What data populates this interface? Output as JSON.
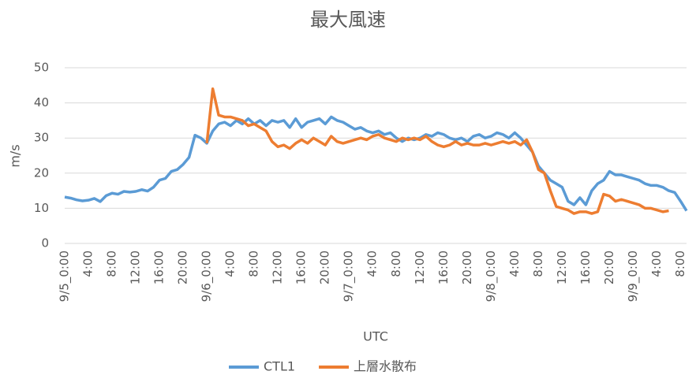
{
  "chart_data": {
    "type": "line",
    "title": "最大風速",
    "x_label": "UTC",
    "y_label": "m/s",
    "categories": [
      "9/5_0:00",
      null,
      null,
      null,
      "4:00",
      null,
      null,
      null,
      "8:00",
      null,
      null,
      null,
      "12:00",
      null,
      null,
      null,
      "16:00",
      null,
      null,
      null,
      "20:00",
      null,
      null,
      null,
      "9/6_0:00",
      null,
      null,
      null,
      "4:00",
      null,
      null,
      null,
      "8:00",
      null,
      null,
      null,
      "12:00",
      null,
      null,
      null,
      "16:00",
      null,
      null,
      null,
      "20:00",
      null,
      null,
      null,
      "9/7_0:00",
      null,
      null,
      null,
      "4:00",
      null,
      null,
      null,
      "8:00",
      null,
      null,
      null,
      "12:00",
      null,
      null,
      null,
      "16:00",
      null,
      null,
      null,
      "20:00",
      null,
      null,
      null,
      "9/8_0:00",
      null,
      null,
      null,
      "4:00",
      null,
      null,
      null,
      "8:00",
      null,
      null,
      null,
      "12:00",
      null,
      null,
      null,
      "16:00",
      null,
      null,
      null,
      "20:00",
      null,
      null,
      null,
      "9/9_0:00",
      null,
      null,
      null,
      "4:00",
      null,
      null,
      null,
      "8:00",
      null
    ],
    "series": [
      {
        "name": "CTL1",
        "color": "#5b9bd5",
        "values": [
          13.2,
          12.9,
          12.4,
          12.1,
          12.3,
          12.8,
          11.9,
          13.6,
          14.3,
          14.0,
          14.8,
          14.6,
          14.8,
          15.3,
          14.9,
          16.0,
          18.0,
          18.5,
          20.5,
          21.0,
          22.5,
          24.5,
          30.8,
          30.0,
          28.5,
          32,
          34,
          34.5,
          33.5,
          35,
          34,
          35.5,
          34,
          35,
          33.5,
          35,
          34.5,
          35,
          33,
          35.5,
          33,
          34.5,
          35,
          35.5,
          34,
          36,
          35,
          34.5,
          33.5,
          32.5,
          33,
          32,
          31.5,
          32,
          31,
          31.5,
          30,
          29,
          30,
          29.5,
          30,
          31,
          30.5,
          31.5,
          31,
          30,
          29.5,
          30,
          29,
          30.5,
          31,
          30,
          30.5,
          31.5,
          31,
          30,
          31.5,
          30,
          28,
          26,
          22,
          20,
          18,
          17,
          16,
          12,
          11,
          13,
          11,
          15,
          17,
          18,
          20.5,
          19.5,
          19.5,
          19,
          18.5,
          18,
          17,
          16.5,
          16.5,
          16,
          15,
          14.5,
          12,
          9.3
        ]
      },
      {
        "name": "上層水散布",
        "color": "#ed7d31",
        "values": [
          null,
          null,
          null,
          null,
          null,
          null,
          null,
          null,
          null,
          null,
          null,
          null,
          null,
          null,
          null,
          null,
          null,
          null,
          null,
          null,
          null,
          null,
          null,
          null,
          28.5,
          44,
          36.5,
          36,
          36,
          35.5,
          35,
          33.5,
          34,
          33,
          32,
          29,
          27.5,
          28,
          27,
          28.5,
          29.5,
          28.5,
          30,
          29,
          28,
          30.5,
          29,
          28.5,
          29,
          29.5,
          30,
          29.5,
          30.5,
          31,
          30,
          29.5,
          29,
          30,
          29.5,
          30,
          29.5,
          30.5,
          29,
          28,
          27.5,
          28,
          29,
          28,
          28.5,
          28,
          28,
          28.5,
          28,
          28.5,
          29,
          28.5,
          29,
          28,
          29.5,
          26,
          21,
          20,
          15,
          10.5,
          10,
          9.5,
          8.5,
          9,
          9,
          8.5,
          9,
          14,
          13.5,
          12,
          12.5,
          12,
          11.5,
          11,
          10,
          10,
          9.5,
          9,
          9.3,
          null,
          null,
          null
        ]
      }
    ],
    "ylim": [
      0,
      50
    ],
    "yticks": [
      0,
      10,
      20,
      30,
      40,
      50
    ],
    "grid": true,
    "legend": "bottom"
  }
}
